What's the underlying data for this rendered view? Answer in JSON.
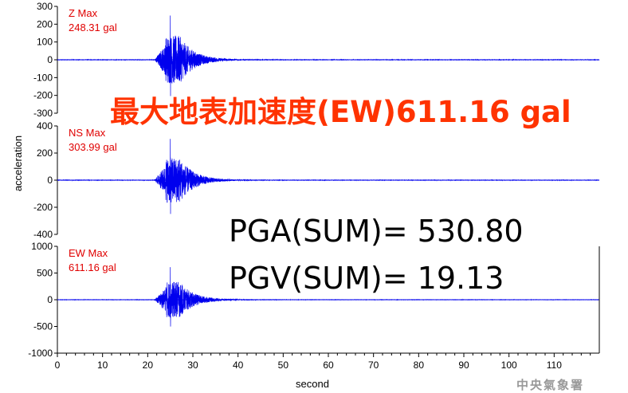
{
  "headline": "最大地表加速度(EW)611.16 gal",
  "pga_text": "PGA(SUM)= 530.80",
  "pgv_text": "PGV(SUM)= 19.13",
  "credit": "中央氣象署",
  "colors": {
    "trace": "#0000ee",
    "max_label": "#e00000",
    "headline": "#ff3300",
    "credit": "#999999"
  },
  "chart_data": [
    {
      "type": "line",
      "component": "Z",
      "max_label": "Z Max",
      "max_value_label": "248.31 gal",
      "peak": 248.31,
      "ylim": [
        -300,
        300
      ],
      "yticks": [
        300,
        200,
        100,
        0,
        -100,
        -200,
        -300
      ],
      "ytick_labels": [
        "300",
        "200",
        "100",
        "0",
        "-100",
        "-200",
        "-300"
      ]
    },
    {
      "type": "line",
      "component": "NS",
      "max_label": "NS Max",
      "max_value_label": "303.99 gal",
      "peak": 303.99,
      "ylim": [
        -400,
        400
      ],
      "yticks": [
        400,
        200,
        0,
        -200,
        -400
      ],
      "ytick_labels": [
        "400",
        "200",
        "0",
        "-200",
        "-400"
      ]
    },
    {
      "type": "line",
      "component": "EW",
      "max_label": "EW Max",
      "max_value_label": "611.16 gal",
      "peak": 611.16,
      "ylim": [
        -1000,
        1000
      ],
      "yticks": [
        1000,
        500,
        0,
        -500,
        -1000
      ],
      "ytick_labels": [
        "1000",
        "500",
        "0",
        "-500",
        "-1000"
      ]
    }
  ],
  "x_axis": {
    "xlim": [
      0,
      120
    ],
    "ticks": [
      0,
      10,
      20,
      30,
      40,
      50,
      60,
      70,
      80,
      90,
      100,
      110
    ],
    "tick_labels": [
      "0",
      "10",
      "20",
      "30",
      "40",
      "50",
      "60",
      "70",
      "80",
      "90",
      "100",
      "110"
    ],
    "label": "second"
  },
  "ylabel": "acceleration"
}
